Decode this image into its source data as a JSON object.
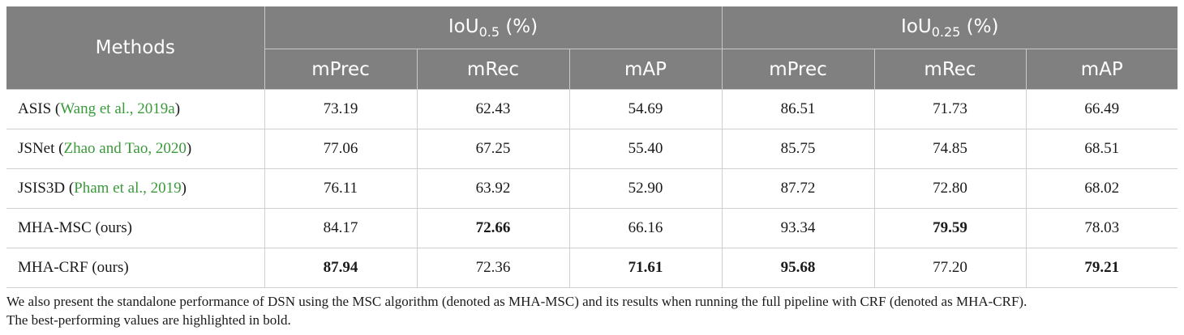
{
  "table": {
    "header": {
      "methods": "Methods",
      "group1": {
        "base": "IoU",
        "sub": "0.5",
        "unit": " (%)"
      },
      "group2": {
        "base": "IoU",
        "sub": "0.25",
        "unit": " (%)"
      },
      "subcols": [
        "mPrec",
        "mRec",
        "mAP",
        "mPrec",
        "mRec",
        "mAP"
      ]
    },
    "rows": [
      {
        "name": "ASIS (",
        "cite": "Wang et al., 2019a",
        "close": ")",
        "values": [
          "73.19",
          "62.43",
          "54.69",
          "86.51",
          "71.73",
          "66.49"
        ],
        "bold": [
          false,
          false,
          false,
          false,
          false,
          false
        ]
      },
      {
        "name": "JSNet (",
        "cite": "Zhao and Tao, 2020",
        "close": ")",
        "values": [
          "77.06",
          "67.25",
          "55.40",
          "85.75",
          "74.85",
          "68.51"
        ],
        "bold": [
          false,
          false,
          false,
          false,
          false,
          false
        ]
      },
      {
        "name": "JSIS3D (",
        "cite": "Pham et al., 2019",
        "close": ")",
        "values": [
          "76.11",
          "63.92",
          "52.90",
          "87.72",
          "72.80",
          "68.02"
        ],
        "bold": [
          false,
          false,
          false,
          false,
          false,
          false
        ]
      },
      {
        "name": "MHA-MSC (ours)",
        "cite": "",
        "close": "",
        "values": [
          "84.17",
          "72.66",
          "66.16",
          "93.34",
          "79.59",
          "78.03"
        ],
        "bold": [
          false,
          true,
          false,
          false,
          true,
          false
        ]
      },
      {
        "name": "MHA-CRF (ours)",
        "cite": "",
        "close": "",
        "values": [
          "87.94",
          "72.36",
          "71.61",
          "95.68",
          "77.20",
          "79.21"
        ],
        "bold": [
          true,
          false,
          true,
          true,
          false,
          true
        ]
      }
    ]
  },
  "note": {
    "line1": "We also present the standalone performance of DSN using the MSC algorithm (denoted as MHA-MSC) and its results when running the full pipeline with CRF (denoted as MHA-CRF).",
    "line2": "The best-performing values are highlighted in bold."
  },
  "colors": {
    "header_bg": "#808080",
    "citation": "#3a9a3a"
  }
}
